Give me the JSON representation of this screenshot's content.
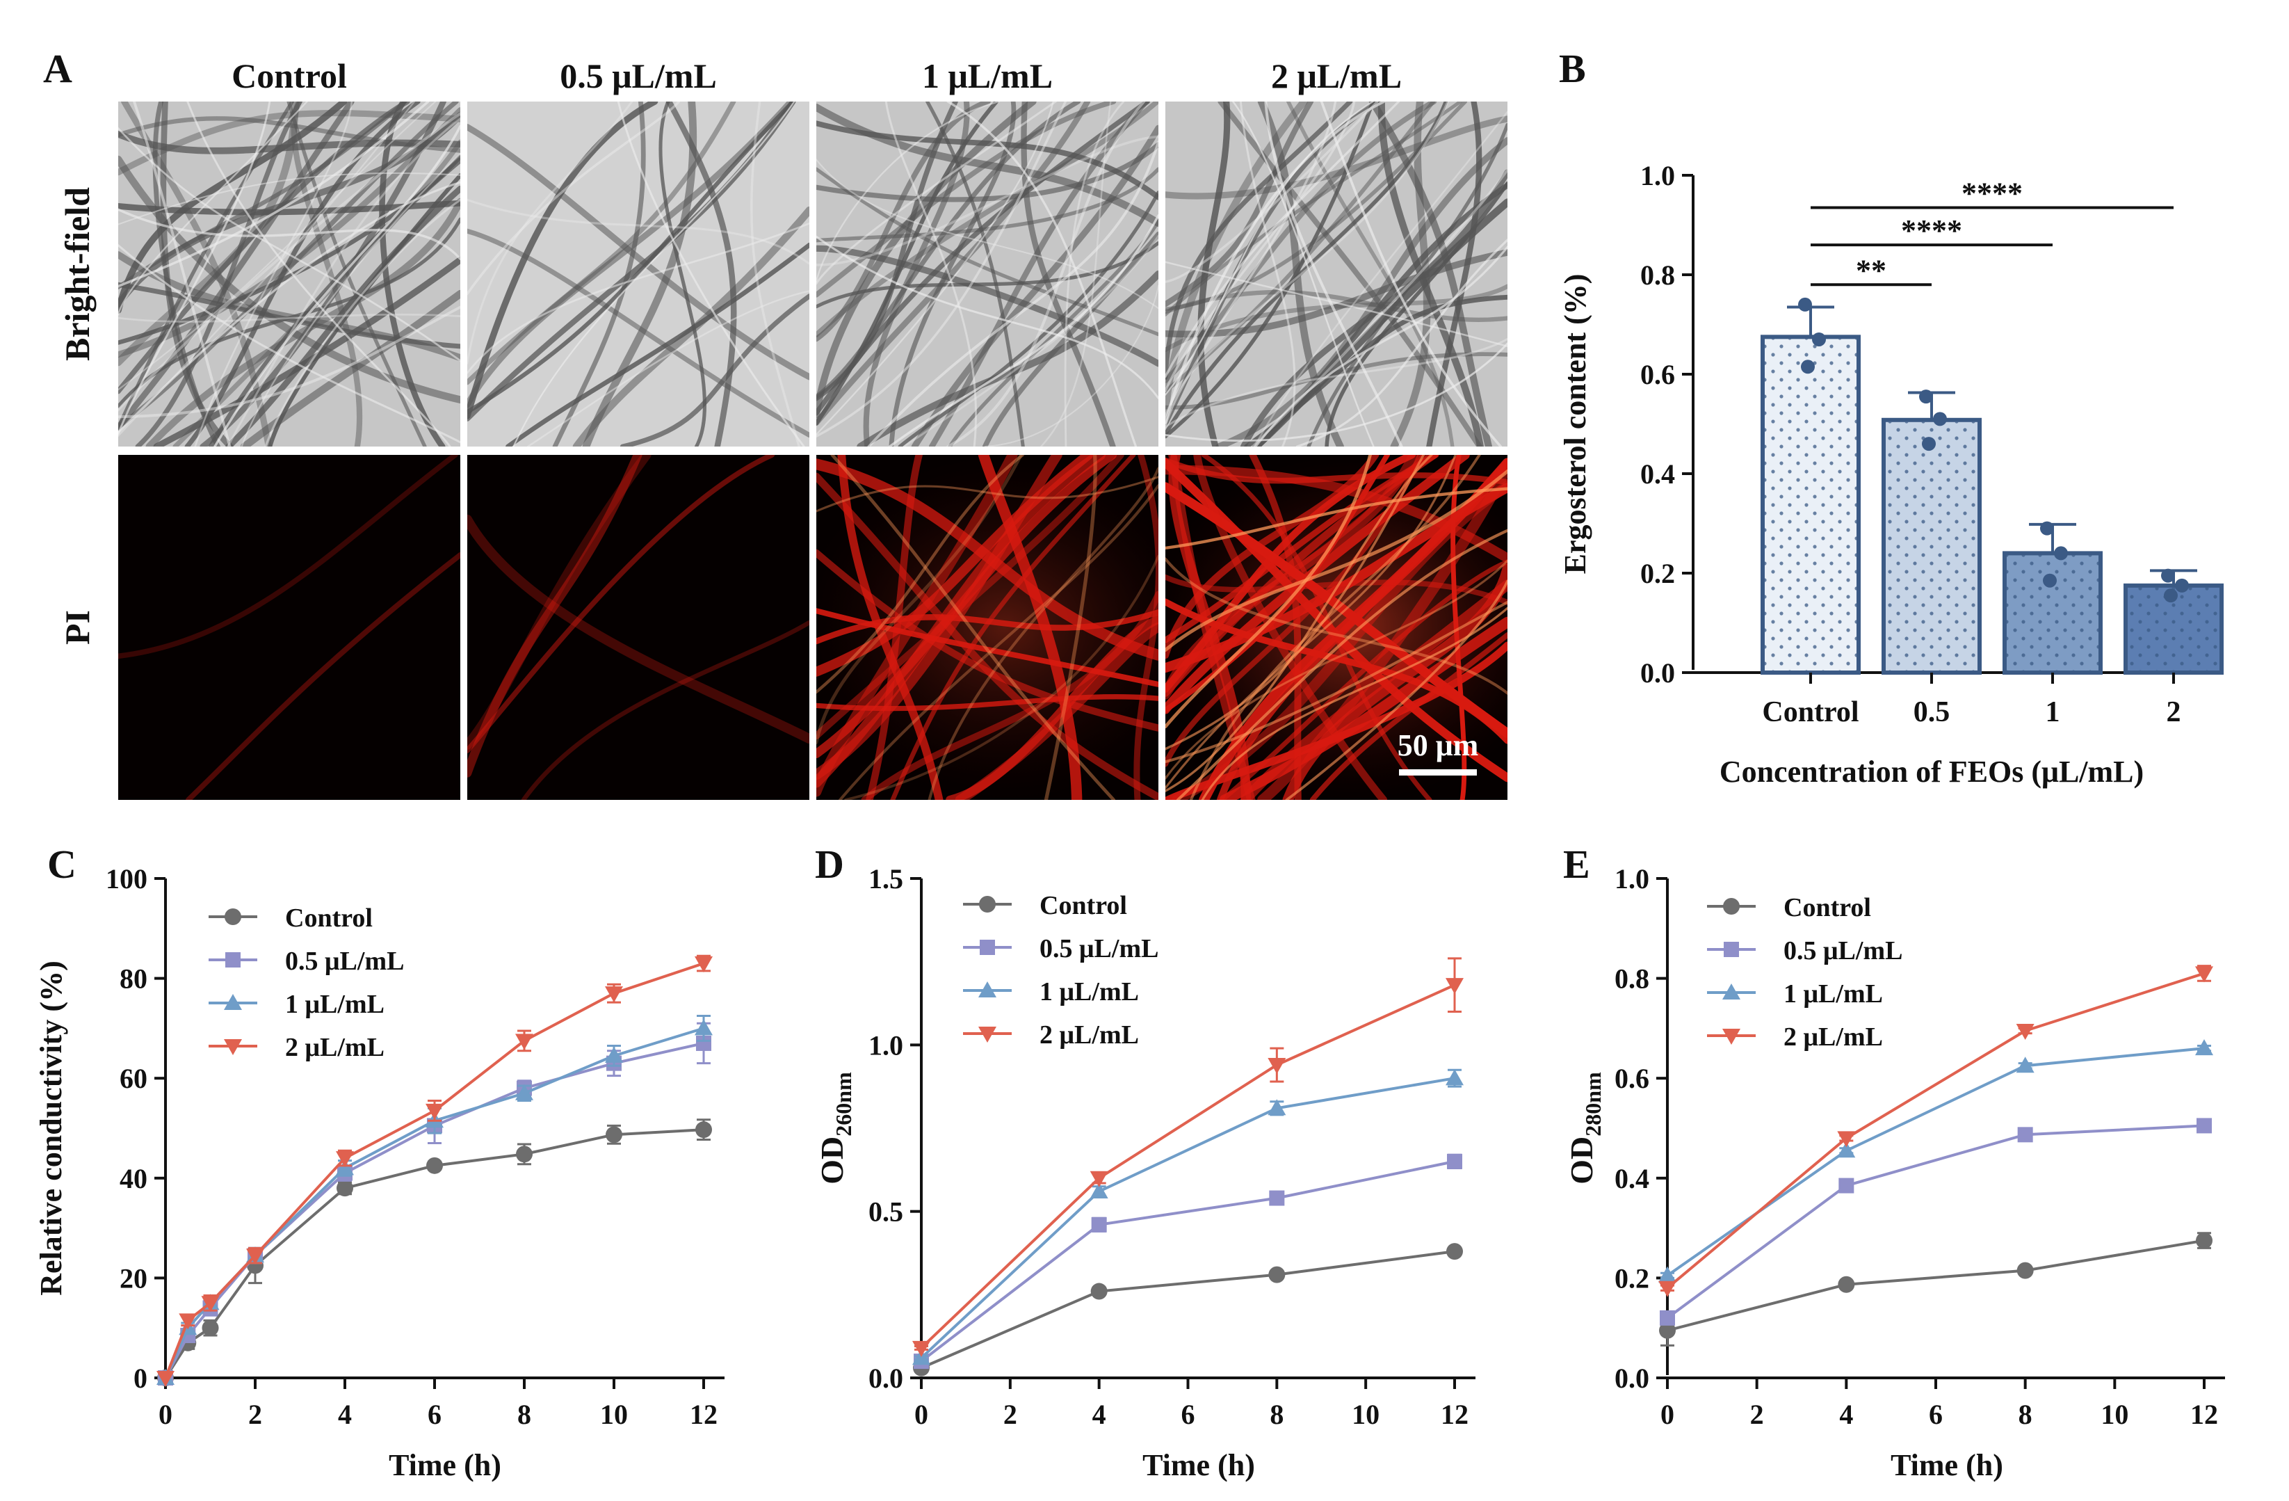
{
  "panel_a": {
    "letter": "A",
    "columns": [
      "Control",
      "0.5 μL/mL",
      "1 μL/mL",
      "2 μL/mL"
    ],
    "rows": [
      "Bright-field",
      "PI"
    ],
    "scale_bar": "50 μm",
    "fluorescence_level": [
      0.02,
      0.15,
      0.6,
      0.95
    ]
  },
  "chart_data": [
    {
      "panel": "B",
      "type": "bar",
      "title": "",
      "categories": [
        "Control",
        "0.5",
        "1",
        "2"
      ],
      "values": [
        0.675,
        0.508,
        0.24,
        0.175
      ],
      "errors": [
        0.06,
        0.055,
        0.058,
        0.03
      ],
      "points": [
        [
          0.74,
          0.67,
          0.615
        ],
        [
          0.555,
          0.51,
          0.46
        ],
        [
          0.29,
          0.24,
          0.185
        ],
        [
          0.195,
          0.175,
          0.155
        ]
      ],
      "xlabel": "Concentration of FEOs (μL/mL)",
      "ylabel": "Ergosterol content (%)",
      "ylim": [
        0,
        1.0
      ],
      "yticks": [
        "0.0",
        "0.2",
        "0.4",
        "0.6",
        "0.8",
        "1.0"
      ],
      "significance": [
        {
          "from": 0,
          "to": 1,
          "y": 0.78,
          "label": "**"
        },
        {
          "from": 0,
          "to": 2,
          "y": 0.86,
          "label": "****"
        },
        {
          "from": 0,
          "to": 3,
          "y": 0.935,
          "label": "****"
        }
      ],
      "bar_colors": [
        "#eaf0f7",
        "#c6d4e6",
        "#7e9cc4",
        "#5c7eb2"
      ],
      "edge_color": "#3b5a85"
    },
    {
      "panel": "C",
      "type": "line",
      "xlabel": "Time (h)",
      "ylabel": "Relative conductivity (%)",
      "xlim": [
        0,
        12
      ],
      "ylim": [
        0,
        100
      ],
      "xticks": [
        "0",
        "2",
        "4",
        "6",
        "8",
        "10",
        "12"
      ],
      "yticks": [
        "0",
        "20",
        "40",
        "60",
        "80",
        "100"
      ],
      "x": [
        0,
        0.5,
        1,
        2,
        4,
        6,
        8,
        10,
        12
      ],
      "series": [
        {
          "name": "Control",
          "values": [
            0,
            7,
            10,
            22.5,
            38,
            42.5,
            44.8,
            48.7,
            49.7
          ],
          "errors": [
            0,
            1.2,
            1.5,
            3.5,
            1.2,
            0.8,
            2.0,
            1.8,
            2.0
          ],
          "color": "#6d6d6d",
          "marker": "circle"
        },
        {
          "name": "0.5 μL/mL",
          "values": [
            0,
            8.5,
            14,
            24.5,
            41,
            50.5,
            58,
            63,
            67
          ],
          "errors": [
            0,
            1.0,
            1.5,
            1.5,
            1.5,
            3.5,
            1.5,
            2.5,
            4.0
          ],
          "color": "#8f8fc9",
          "marker": "square"
        },
        {
          "name": "1 μL/mL",
          "values": [
            0,
            10,
            15,
            24.5,
            42,
            51.5,
            57,
            64.5,
            70
          ],
          "errors": [
            0,
            1.0,
            1.5,
            1.5,
            1.5,
            2.5,
            1.5,
            2.0,
            2.5
          ],
          "color": "#6f9dc8",
          "marker": "triangle-up"
        },
        {
          "name": "2 μL/mL",
          "values": [
            0,
            11.5,
            15,
            24.5,
            44,
            53.5,
            67.5,
            77,
            83
          ],
          "errors": [
            0,
            1.0,
            1.5,
            1.5,
            1.5,
            2.0,
            2.0,
            1.8,
            1.5
          ],
          "color": "#e0614f",
          "marker": "triangle-down"
        }
      ]
    },
    {
      "panel": "D",
      "type": "line",
      "xlabel": "Time (h)",
      "ylabel_main": "OD",
      "ylabel_sub": "260nm",
      "xlim": [
        0,
        12
      ],
      "ylim": [
        0,
        1.5
      ],
      "xticks": [
        "0",
        "2",
        "4",
        "6",
        "8",
        "10",
        "12"
      ],
      "yticks": [
        "0.0",
        "0.5",
        "1.0",
        "1.5"
      ],
      "x": [
        0,
        4,
        8,
        12
      ],
      "series": [
        {
          "name": "Control",
          "values": [
            0.03,
            0.26,
            0.31,
            0.38
          ],
          "errors": [
            0.005,
            0.005,
            0.005,
            0.01
          ],
          "color": "#6d6d6d",
          "marker": "circle"
        },
        {
          "name": "0.5 μL/mL",
          "values": [
            0.05,
            0.46,
            0.54,
            0.65
          ],
          "errors": [
            0.005,
            0.02,
            0.015,
            0.02
          ],
          "color": "#8f8fc9",
          "marker": "square"
        },
        {
          "name": "1 μL/mL",
          "values": [
            0.06,
            0.56,
            0.81,
            0.9
          ],
          "errors": [
            0.005,
            0.015,
            0.02,
            0.025
          ],
          "color": "#6f9dc8",
          "marker": "triangle-up"
        },
        {
          "name": "2 μL/mL",
          "values": [
            0.09,
            0.6,
            0.94,
            1.18
          ],
          "errors": [
            0.005,
            0.015,
            0.05,
            0.08
          ],
          "color": "#e0614f",
          "marker": "triangle-down"
        }
      ]
    },
    {
      "panel": "E",
      "type": "line",
      "xlabel": "Time (h)",
      "ylabel_main": "OD",
      "ylabel_sub": "280nm",
      "xlim": [
        0,
        12
      ],
      "ylim": [
        0,
        1.0
      ],
      "xticks": [
        "0",
        "2",
        "4",
        "6",
        "8",
        "10",
        "12"
      ],
      "yticks": [
        "0.0",
        "0.2",
        "0.4",
        "0.6",
        "0.8",
        "1.0"
      ],
      "x": [
        0,
        4,
        8,
        12
      ],
      "series": [
        {
          "name": "Control",
          "values": [
            0.095,
            0.187,
            0.215,
            0.275
          ],
          "errors": [
            0.03,
            0.005,
            0.005,
            0.015
          ],
          "color": "#6d6d6d",
          "marker": "circle"
        },
        {
          "name": "0.5 μL/mL",
          "values": [
            0.12,
            0.385,
            0.487,
            0.505
          ],
          "errors": [
            0.01,
            0.005,
            0.005,
            0.005
          ],
          "color": "#8f8fc9",
          "marker": "square"
        },
        {
          "name": "1 μL/mL",
          "values": [
            0.205,
            0.455,
            0.625,
            0.66
          ],
          "errors": [
            0.005,
            0.005,
            0.005,
            0.005
          ],
          "color": "#6f9dc8",
          "marker": "triangle-up"
        },
        {
          "name": "2 μL/mL",
          "values": [
            0.18,
            0.48,
            0.695,
            0.81
          ],
          "errors": [
            0.005,
            0.005,
            0.005,
            0.015
          ],
          "color": "#e0614f",
          "marker": "triangle-down"
        }
      ]
    }
  ]
}
